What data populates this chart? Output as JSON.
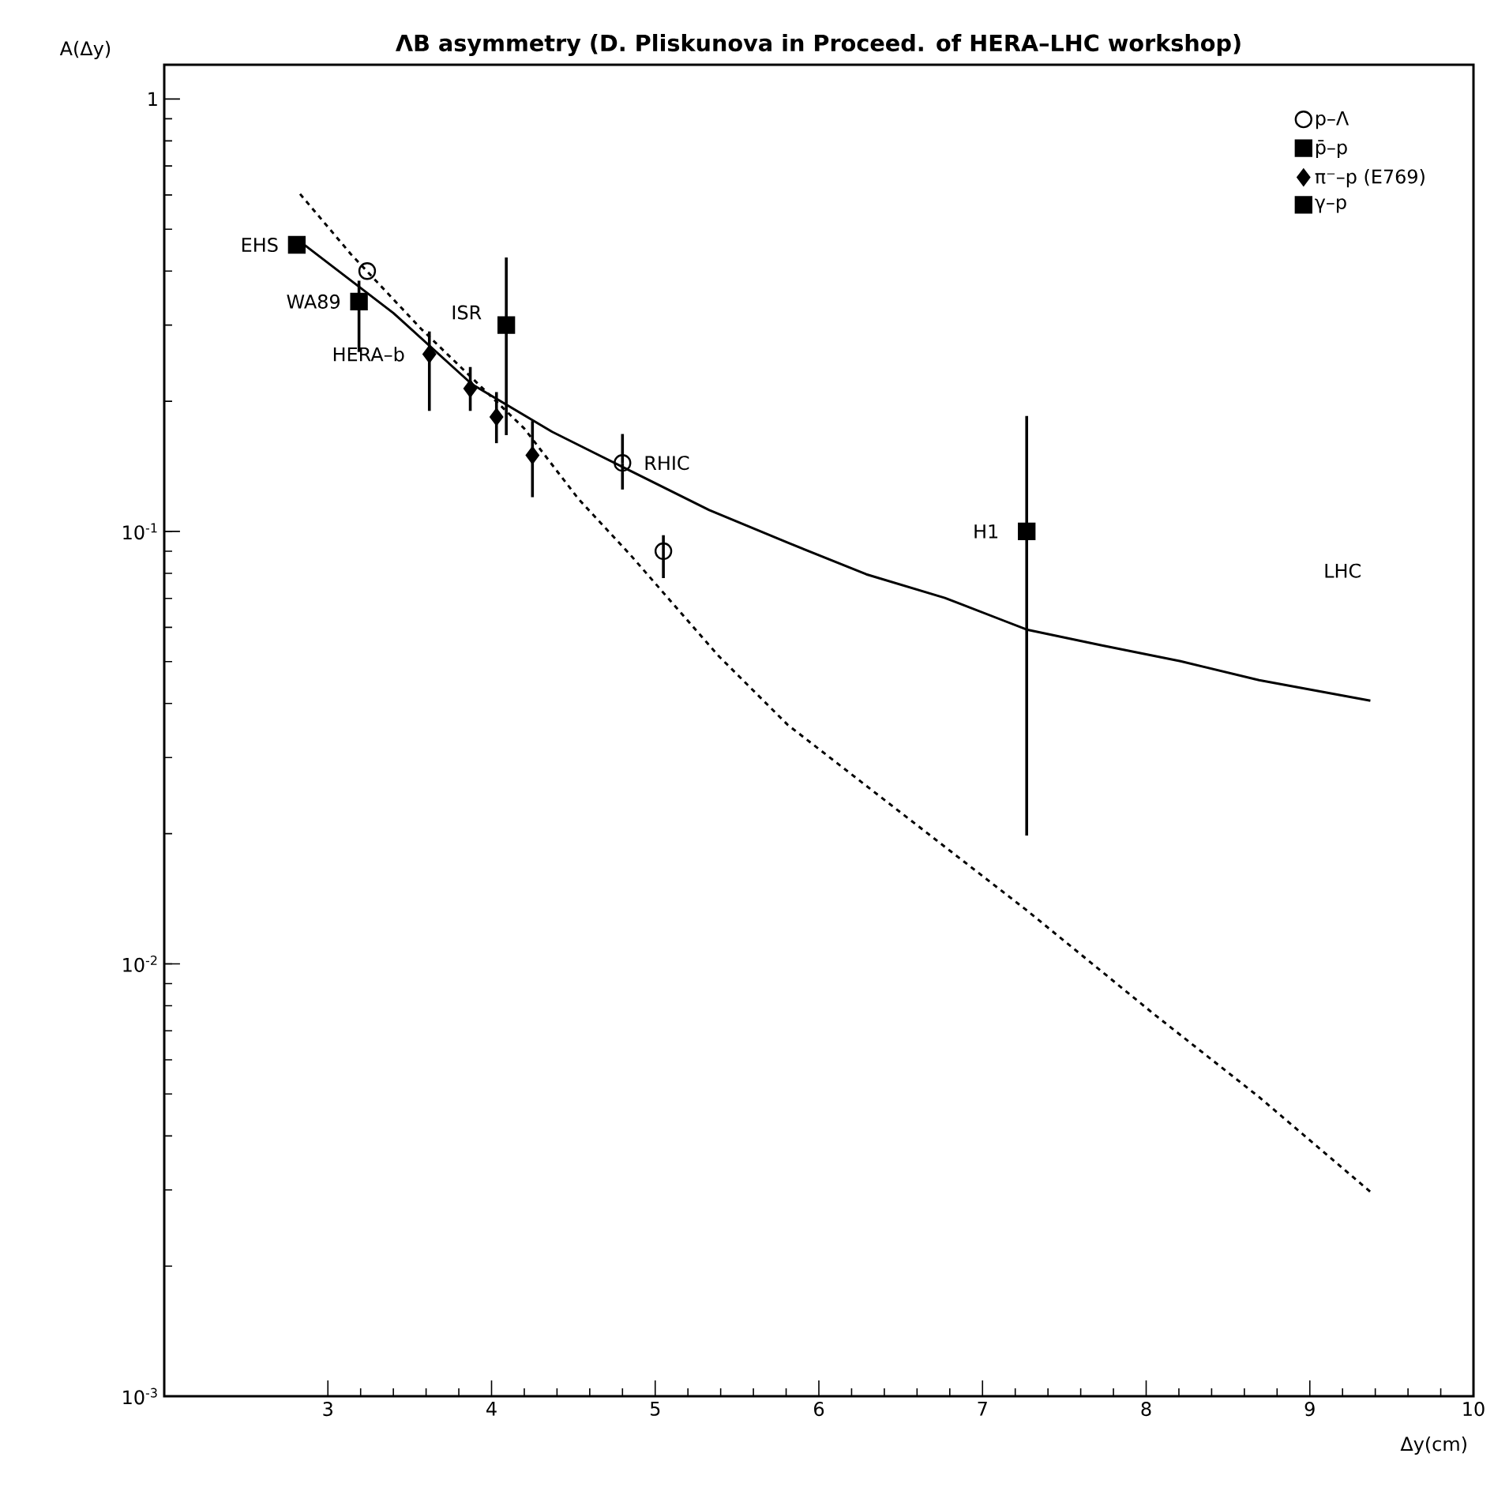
{
  "chart_data": {
    "type": "scatter",
    "title": "ΛB asymmetry (D. Pliskunova in Proceed. of HERA–LHC workshop)",
    "xlabel": "Δy(cm)",
    "ylabel": "A(Δy)",
    "xlim": [
      2,
      10
    ],
    "ylim": [
      0.001,
      1.2
    ],
    "log": "y",
    "legend": "top right",
    "xticks": [
      3,
      4,
      5,
      6,
      7,
      8,
      9,
      10
    ],
    "yticks": [
      {
        "value": 0.001,
        "label": "10$^{-3}$"
      },
      {
        "value": 0.01,
        "label": "10$^{-2}$"
      },
      {
        "value": 0.1,
        "label": "10$^{-1}$"
      },
      1
    ],
    "series": [
      {
        "name": "p–Λ",
        "color": "#000000",
        "marker": "circle",
        "x": [
          3.24,
          4.8,
          5.05
        ],
        "values": [
          0.4,
          0.144,
          0.09
        ],
        "errors": [
          null,
          [
            0.125,
            0.168
          ],
          [
            0.078,
            0.098
          ]
        ]
      },
      {
        "name": "p̄–p",
        "color": "#000000",
        "marker": "square",
        "x": [
          2.81,
          3.19,
          4.09
        ],
        "values": [
          0.46,
          0.34,
          0.3
        ],
        "errors": [
          null,
          [
            0.26,
            0.38
          ],
          [
            0.167,
            0.43
          ]
        ]
      },
      {
        "name": "π⁻–p (E769)",
        "color": "#000000",
        "marker": "diamond",
        "x": [
          3.62,
          3.87,
          4.03,
          4.25
        ],
        "values": [
          0.257,
          0.214,
          0.184,
          0.15
        ],
        "errors": [
          [
            0.19,
            0.29
          ],
          [
            0.19,
            0.24
          ],
          [
            0.16,
            0.21
          ],
          [
            0.12,
            0.18
          ]
        ]
      },
      {
        "name": "γ–p",
        "color": "#000000",
        "marker": "square",
        "x": [
          7.27
        ],
        "values": [
          0.1
        ],
        "errors": [
          [
            0.0198,
            0.185
          ]
        ]
      },
      {
        "type": "line",
        "color": "#000000",
        "line_style": "solid",
        "marker": "none",
        "x": [
          2.83,
          3.4,
          3.88,
          4.37,
          4.85,
          5.33,
          5.81,
          6.29,
          6.77,
          7.27,
          7.73,
          8.21,
          8.69,
          9.37
        ],
        "values": [
          0.468,
          0.32,
          0.219,
          0.17,
          0.138,
          0.112,
          0.0942,
          0.0796,
          0.0702,
          0.0593,
          0.0545,
          0.0501,
          0.0453,
          0.0406
        ]
      },
      {
        "type": "line",
        "color": "#000000",
        "line_style": "dashed",
        "marker": "none",
        "x": [
          2.83,
          3.14,
          3.57,
          4.2,
          4.53,
          4.85,
          5.39,
          5.81,
          7.27,
          8.05,
          8.69,
          9.37
        ],
        "values": [
          0.603,
          0.438,
          0.294,
          0.173,
          0.119,
          0.0881,
          0.0514,
          0.0357,
          0.0133,
          0.00764,
          0.00492,
          0.00297
        ]
      }
    ],
    "annotations": [
      {
        "text": "EHS",
        "x": 2.81,
        "y": 0.46
      },
      {
        "text": "WA89",
        "x": 3.19,
        "y": 0.34
      },
      {
        "text": "ISR",
        "x": 4.09,
        "y": 0.3
      },
      {
        "text": "HERA–b",
        "x": 3.62,
        "y": 0.257
      },
      {
        "text": "RHIC",
        "x": 4.8,
        "y": 0.144
      },
      {
        "text": "H1",
        "x": 7.27,
        "y": 0.1
      },
      "LHC"
    ]
  }
}
